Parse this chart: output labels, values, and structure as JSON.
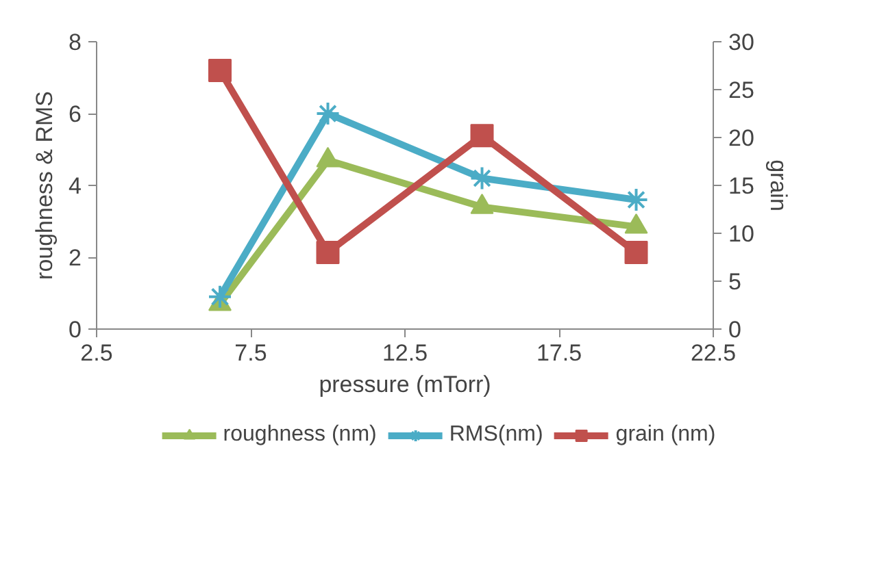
{
  "chart_data": {
    "type": "line",
    "xlabel": "pressure (mTorr)",
    "ylabel": "roughness & RMS",
    "y2label": "grain",
    "x": [
      6.5,
      10,
      15,
      20
    ],
    "series": [
      {
        "name": "roughness (nm)",
        "color": "#9bbb59",
        "marker": "triangle",
        "values": [
          0.7,
          4.7,
          3.4,
          2.85
        ]
      },
      {
        "name": "RMS(nm)",
        "color": "#4bacc6",
        "marker": "cross",
        "values": [
          0.9,
          6.0,
          4.2,
          3.6
        ]
      },
      {
        "name": "grain (nm)",
        "color": "#c0504d",
        "marker": "square",
        "axis": "y2",
        "values": [
          27,
          8,
          20.2,
          8
        ]
      }
    ],
    "xlim": [
      2.5,
      22.5
    ],
    "xticks": [
      2.5,
      7.5,
      12.5,
      17.5,
      22.5
    ],
    "ylim": [
      0,
      8
    ],
    "yticks": [
      0,
      2,
      4,
      6,
      8
    ],
    "y2lim": [
      0,
      30
    ],
    "y2ticks": [
      0,
      5,
      10,
      15,
      20,
      25,
      30
    ],
    "grid": false,
    "legend": "bottom",
    "line_style": "solid"
  }
}
